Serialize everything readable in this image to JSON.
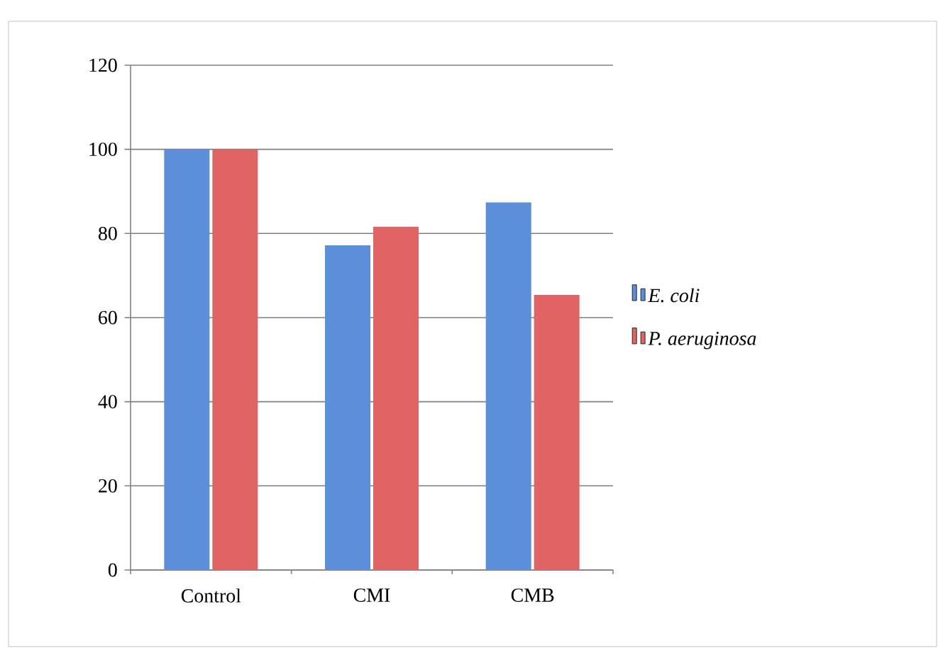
{
  "chart_data": {
    "type": "bar",
    "categories": [
      "Control",
      "CMI",
      "CMB"
    ],
    "series": [
      {
        "name": "E. coli",
        "color": "#5b8fd9",
        "values": [
          100,
          77.2,
          87.4
        ]
      },
      {
        "name": "P. aeruginosa",
        "color": "#e06464",
        "values": [
          100,
          81.6,
          65.4
        ]
      }
    ],
    "ylim": [
      0,
      120
    ],
    "yticks": [
      0,
      20,
      40,
      60,
      80,
      100,
      120
    ],
    "grid": "y",
    "legend": "right"
  }
}
